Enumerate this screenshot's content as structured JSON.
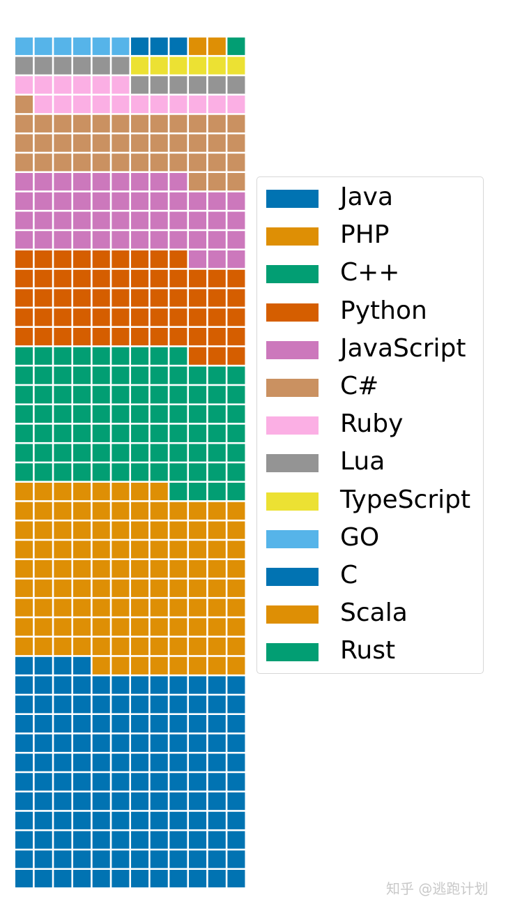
{
  "chart_data": {
    "type": "waffle",
    "rows": 45,
    "columns": 12,
    "fill_order": "column-wise from bottom-left",
    "grid": false,
    "legend_position": "right",
    "series": [
      {
        "name": "Java",
        "value": 136,
        "color": "#0173b2"
      },
      {
        "name": "PHP",
        "value": 112,
        "color": "#de8f05"
      },
      {
        "name": "C++",
        "value": 85,
        "color": "#029e73"
      },
      {
        "name": "Python",
        "value": 60,
        "color": "#d55e00"
      },
      {
        "name": "JavaScript",
        "value": 48,
        "color": "#cc78bc"
      },
      {
        "name": "C#",
        "value": 40,
        "color": "#ca9161"
      },
      {
        "name": "Ruby",
        "value": 17,
        "color": "#fbafe4"
      },
      {
        "name": "Lua",
        "value": 12,
        "color": "#949494"
      },
      {
        "name": "TypeScript",
        "value": 6,
        "color": "#ece133"
      },
      {
        "name": "GO",
        "value": 6,
        "color": "#56b4e9"
      },
      {
        "name": "C",
        "value": 3,
        "color": "#0173b2"
      },
      {
        "name": "Scala",
        "value": 2,
        "color": "#de8f05"
      },
      {
        "name": "Rust",
        "value": 1,
        "color": "#029e73"
      }
    ]
  },
  "watermark": "知乎 @逃跑计划"
}
